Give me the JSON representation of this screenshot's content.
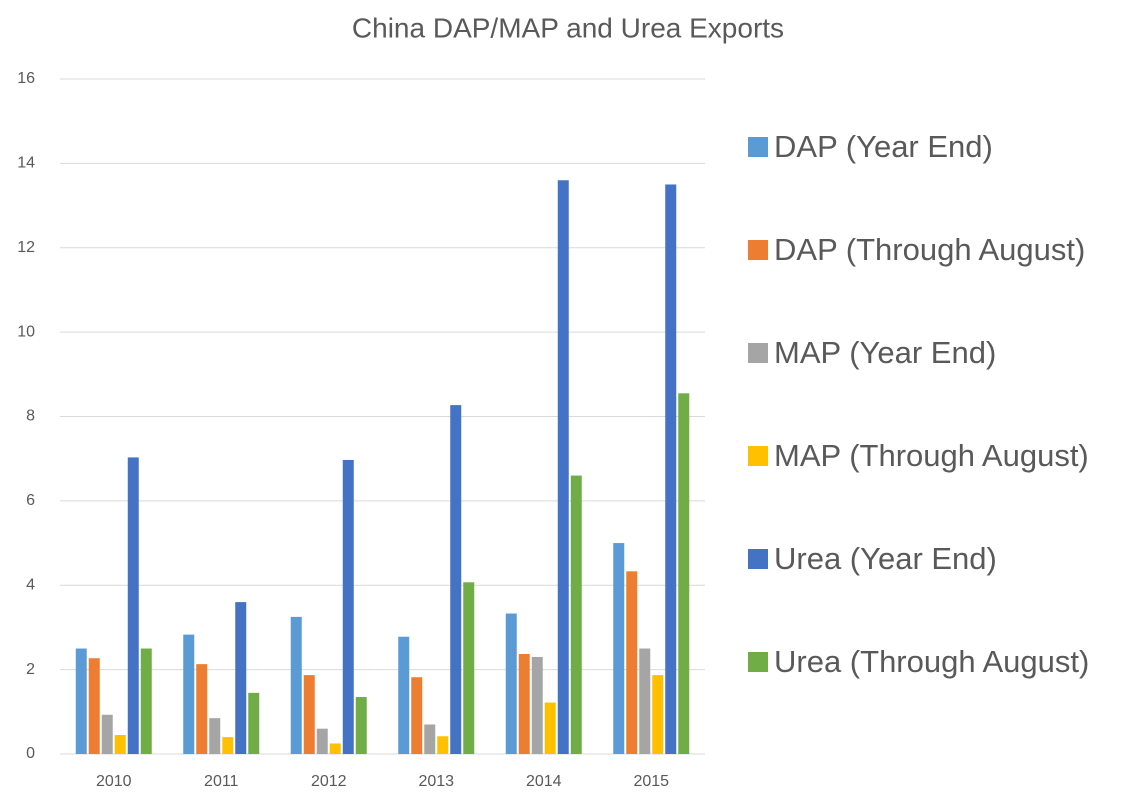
{
  "chart_data": {
    "type": "bar",
    "title": "China DAP/MAP and Urea Exports",
    "categories": [
      "2010",
      "2011",
      "2012",
      "2013",
      "2014",
      "2015"
    ],
    "series": [
      {
        "name": "DAP (Year End)",
        "color": "#5b9bd5",
        "values": [
          2.5,
          2.83,
          3.25,
          2.78,
          3.33,
          5.0
        ]
      },
      {
        "name": "DAP (Through August)",
        "color": "#ed7d31",
        "values": [
          2.27,
          2.13,
          1.87,
          1.82,
          2.37,
          4.33
        ]
      },
      {
        "name": "MAP (Year End)",
        "color": "#a5a5a5",
        "values": [
          0.93,
          0.85,
          0.6,
          0.7,
          2.3,
          2.5
        ]
      },
      {
        "name": "MAP (Through August)",
        "color": "#ffc000",
        "values": [
          0.45,
          0.4,
          0.25,
          0.42,
          1.22,
          1.87
        ]
      },
      {
        "name": "Urea (Year End)",
        "color": "#4472c4",
        "values": [
          7.03,
          3.6,
          6.97,
          8.27,
          13.6,
          13.5
        ]
      },
      {
        "name": "Urea (Through August)",
        "color": "#70ad47",
        "values": [
          2.5,
          1.45,
          1.35,
          4.07,
          6.6,
          8.55
        ]
      }
    ],
    "ylim": [
      0,
      16
    ],
    "yticks": [
      0,
      2,
      4,
      6,
      8,
      10,
      12,
      14,
      16
    ],
    "grid": true,
    "legend": "right"
  }
}
